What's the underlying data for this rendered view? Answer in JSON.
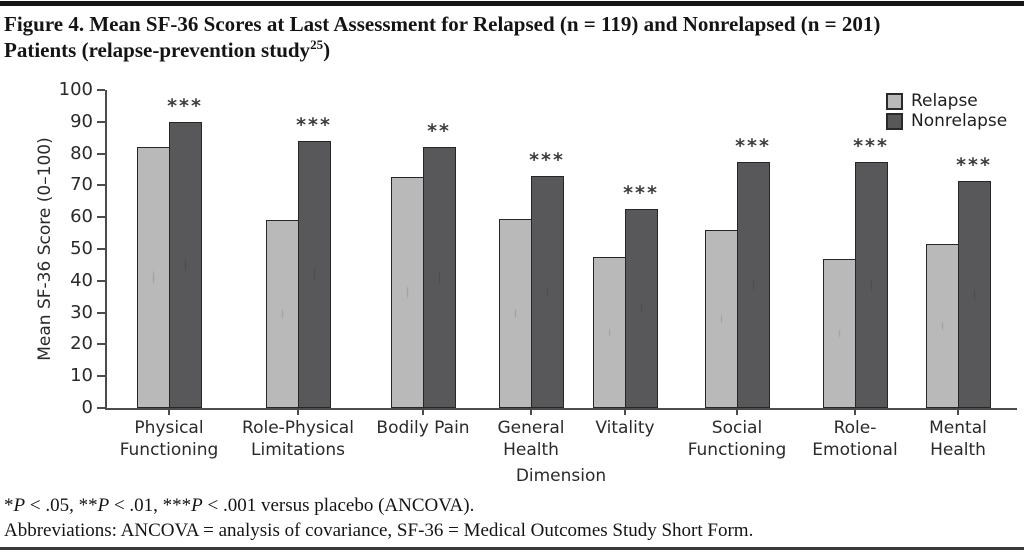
{
  "page": {
    "title_line1": "Figure 4. Mean SF-36 Scores at Last Assessment for Relapsed (n = 119) and Nonrelapsed (n = 201)",
    "title_line2_pre": "Patients (relapse-prevention study",
    "title_superscript": "25",
    "title_line2_post": ")"
  },
  "chart_data": {
    "type": "bar",
    "title": "Mean SF-36 Scores at Last Assessment for Relapsed (n = 119) and Nonrelapsed (n = 201) Patients (relapse-prevention study)",
    "categories": [
      "Physical\nFunctioning",
      "Role-Physical\nLimitations",
      "Bodily Pain",
      "General\nHealth",
      "Vitality",
      "Social\nFunctioning",
      "Role-\nEmotional",
      "Mental\nHealth"
    ],
    "series": [
      {
        "name": "Relapse",
        "color": "#b9b9b9",
        "values": [
          82,
          59,
          72.5,
          59.5,
          47.5,
          56,
          47,
          51.5
        ]
      },
      {
        "name": "Nonrelapse",
        "color": "#58585a",
        "values": [
          90,
          84,
          82,
          73,
          62.5,
          77.5,
          77.5,
          71.5
        ]
      }
    ],
    "significance_markers": [
      "***",
      "***",
      "**",
      "***",
      "***",
      "***",
      "***",
      "***"
    ],
    "markers_apply_to_series": "Nonrelapse",
    "xlabel": "Dimension",
    "ylabel": "Mean SF-36 Score (0–100)",
    "ylim": [
      0,
      100
    ],
    "ytick_step": 10,
    "grid": false,
    "legend_position": "top-right"
  },
  "legend": {
    "items": [
      {
        "label": "Relapse",
        "color": "#b9b9b9"
      },
      {
        "label": "Nonrelapse",
        "color": "#58585a"
      }
    ]
  },
  "footnotes": {
    "significance_parts": [
      {
        "t": "*"
      },
      {
        "t": "P",
        "italic": true
      },
      {
        "t": " < .05, **"
      },
      {
        "t": "P",
        "italic": true
      },
      {
        "t": " < .01, ***"
      },
      {
        "t": "P",
        "italic": true
      },
      {
        "t": " < .001 versus placebo (ANCOVA)."
      }
    ],
    "abbreviations": "Abbreviations: ANCOVA = analysis of covariance, SF-36 = Medical Outcomes Study Short Form."
  },
  "colors": {
    "bar_border": "#262626",
    "axis": "#4c4c4c",
    "marker_text": "#3d3d3d"
  }
}
